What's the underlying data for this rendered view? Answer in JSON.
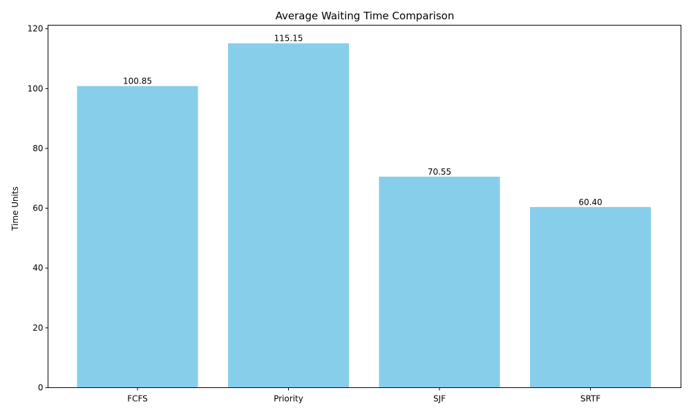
{
  "chart_data": {
    "type": "bar",
    "title": "Average Waiting Time Comparison",
    "xlabel": "",
    "ylabel": "Time Units",
    "categories": [
      "FCFS",
      "Priority",
      "SJF",
      "SRTF"
    ],
    "values": [
      100.85,
      115.15,
      70.55,
      60.4
    ],
    "value_labels": [
      "100.85",
      "115.15",
      "70.55",
      "60.40"
    ],
    "ylim": [
      0,
      121.2
    ],
    "yticks": [
      0,
      20,
      40,
      60,
      80,
      100,
      120
    ],
    "grid": false,
    "legend": "none",
    "bar_color": "#87CEEB"
  }
}
